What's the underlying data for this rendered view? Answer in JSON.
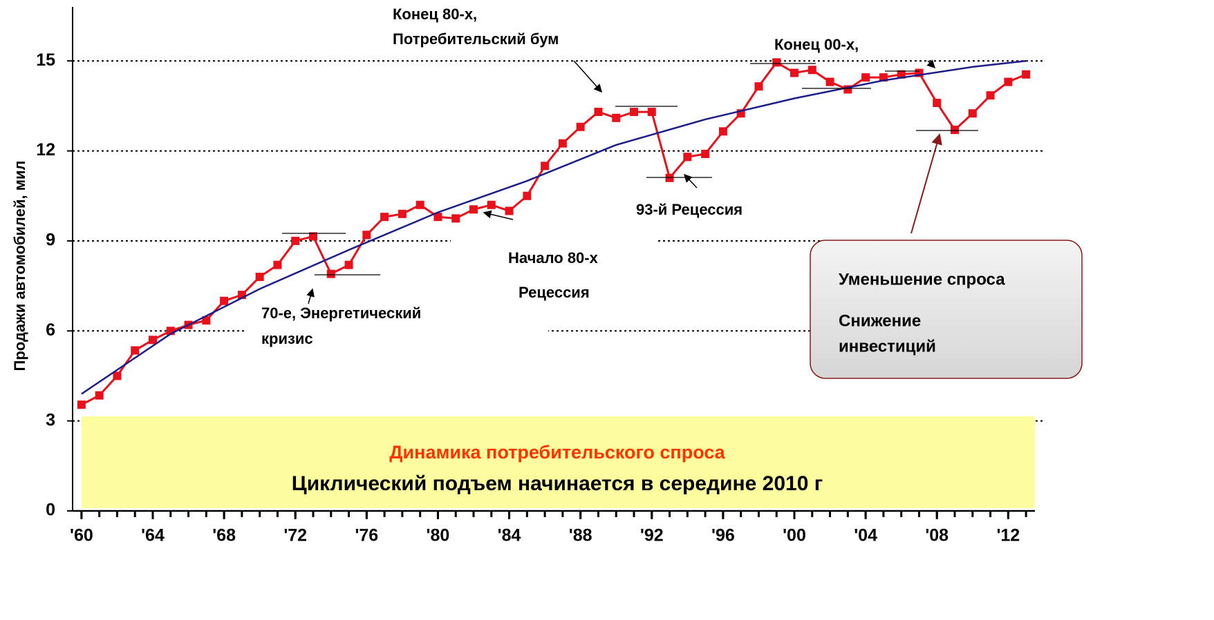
{
  "chart_data": {
    "type": "line",
    "y_label": "Продажи автомобилей, мил",
    "x": [
      1960,
      1961,
      1962,
      1963,
      1964,
      1965,
      1966,
      1967,
      1968,
      1969,
      1970,
      1971,
      1972,
      1973,
      1974,
      1975,
      1976,
      1977,
      1978,
      1979,
      1980,
      1981,
      1982,
      1983,
      1984,
      1985,
      1986,
      1987,
      1988,
      1989,
      1990,
      1991,
      1992,
      1993,
      1994,
      1995,
      1996,
      1997,
      1998,
      1999,
      2000,
      2001,
      2002,
      2003,
      2004,
      2005,
      2006,
      2007,
      2008,
      2009,
      2010,
      2011,
      2012,
      2013
    ],
    "series": [
      {
        "color": "#e8101a",
        "values": [
          3.54,
          3.85,
          4.5,
          5.35,
          5.7,
          6.0,
          6.2,
          6.35,
          7.0,
          7.2,
          7.8,
          8.2,
          9.0,
          9.15,
          7.9,
          8.2,
          9.2,
          9.8,
          9.9,
          10.2,
          9.8,
          9.75,
          10.05,
          10.2,
          10.0,
          10.5,
          11.5,
          12.25,
          12.8,
          13.3,
          13.1,
          13.3,
          13.3,
          11.1,
          11.8,
          11.9,
          12.65,
          13.25,
          14.15,
          14.95,
          14.6,
          14.7,
          14.3,
          14.05,
          14.45,
          14.45,
          14.55,
          14.6,
          13.6,
          12.7,
          13.25,
          13.85,
          14.3,
          14.55
        ]
      },
      {
        "color": "#1c1c8a",
        "x": [
          1960,
          1965,
          1970,
          1975,
          1980,
          1985,
          1990,
          1995,
          2000,
          2005,
          2010,
          2013
        ],
        "values": [
          3.9,
          5.9,
          7.4,
          8.7,
          9.95,
          11.0,
          12.2,
          13.05,
          13.75,
          14.35,
          14.8,
          15.0
        ]
      }
    ],
    "xlim": [
      1959.5,
      2013.5
    ],
    "xticks": [
      {
        "value": 1960,
        "label": "'60"
      },
      {
        "value": 1964,
        "label": "'64"
      },
      {
        "value": 1968,
        "label": "'68"
      },
      {
        "value": 1972,
        "label": "'72"
      },
      {
        "value": 1976,
        "label": "'76"
      },
      {
        "value": 1980,
        "label": "'80"
      },
      {
        "value": 1984,
        "label": "'84"
      },
      {
        "value": 1988,
        "label": "'88"
      },
      {
        "value": 1992,
        "label": "'92"
      },
      {
        "value": 1996,
        "label": "'96"
      },
      {
        "value": 2000,
        "label": "'00"
      },
      {
        "value": 2004,
        "label": "'04"
      },
      {
        "value": 2008,
        "label": "'08"
      },
      {
        "value": 2012,
        "label": "'12"
      }
    ],
    "ylim": [
      0,
      16.8
    ],
    "yticks": [
      0,
      3,
      6,
      9,
      12,
      15
    ],
    "grid": true,
    "annotations": [
      "Конец 80-х,",
      "Потребительский бум",
      "Конец 00-х,",
      "93-й Рецессия",
      "Начало 80-х",
      "Рецессия",
      "70-е, Энергетический",
      "кризис"
    ],
    "callout": [
      "Уменьшение спроса",
      "Снижение",
      "инвестиций"
    ],
    "banner_title": "Динамика потребительского спроса",
    "banner_subtitle": "Циклический подъем начинается в середине 2010 г"
  }
}
